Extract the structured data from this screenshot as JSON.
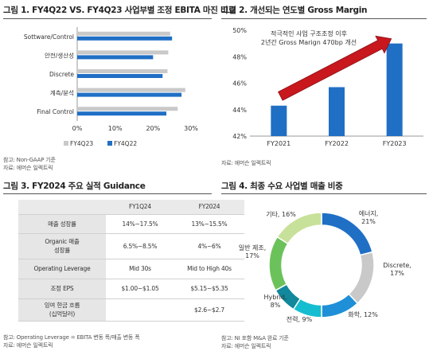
{
  "fig1": {
    "title": "그림 1. FY4Q22 VS. FY4Q23 사업부별 조정 EBITA 마진 비교",
    "notes": [
      "참고: Non-GAAP 기준",
      "자료: 에머슨 일렉트릭"
    ],
    "chart_data": {
      "type": "bar",
      "orientation": "horizontal",
      "categories": [
        "Sottware/Control",
        "안전/생산성",
        "Discrete",
        "계측/분석",
        "Final Control"
      ],
      "series": [
        {
          "name": "FY4Q23",
          "color": "#c9c9c9",
          "values": [
            24.5,
            24.0,
            23.8,
            28.5,
            26.5
          ]
        },
        {
          "name": "FY4Q22",
          "color": "#1f6fc5",
          "values": [
            25.0,
            20.0,
            22.5,
            27.5,
            23.5
          ]
        }
      ],
      "xlim": [
        0,
        30
      ],
      "xticks": [
        "0%",
        "10%",
        "20%",
        "30%"
      ],
      "legend": "bottom"
    }
  },
  "fig2": {
    "title": "그림 2. 개선되는 연도별 Gross Margin",
    "notes": [
      "자료: 에머슨 일렉트릭"
    ],
    "chart_data": {
      "type": "bar",
      "categories": [
        "FY2021",
        "FY2022",
        "FY2023"
      ],
      "values": [
        44.3,
        45.7,
        49.0
      ],
      "color": "#1f6fc5",
      "ylim": [
        42,
        50
      ],
      "yticks": [
        "42%",
        "44%",
        "46%",
        "48%",
        "50%"
      ],
      "annotation": [
        "적극적인 사업 구조조정 이후",
        "2년간 Gross Marign 470bp 개선"
      ],
      "arrow_color": "#c8171d"
    }
  },
  "fig3": {
    "title": "그림 3. FY2024 주요 실적 Guidance",
    "notes": [
      "참고: Operating Leverage = EBITA 변동 폭/매출 변동 폭",
      "자료: 에머슨 일렉트릭"
    ],
    "chart_data": {
      "type": "table",
      "columns": [
        "",
        "FY1Q24",
        "FY2024"
      ],
      "rows": [
        [
          "매출 성장률",
          "14%~17.5%",
          "13%~15.5%"
        ],
        [
          "Organic 매출\n성장률",
          "6.5%~8.5%",
          "4%~6%"
        ],
        [
          "Operating Leverage",
          "Mid 30s",
          "Mid to High 40s"
        ],
        [
          "조정 EPS",
          "$1.00~$1.05",
          "$5.15~$5.35"
        ],
        [
          "잉여 현금 흐름\n(십억달러)",
          "",
          "$2.6~$2.7"
        ]
      ]
    }
  },
  "fig4": {
    "title": "그림 4. 최종 수요 사업별 매출 비중",
    "notes": [
      "참고: NI 포함 M&A 완료 기준",
      "자료: 에머슨 일렉트릭"
    ],
    "chart_data": {
      "type": "pie",
      "style": "donut",
      "slices": [
        {
          "label": "에너지,\n21%",
          "value": 21,
          "color": "#1f6fc5"
        },
        {
          "label": "Discrete,\n17%",
          "value": 17,
          "color": "#c9c9c9"
        },
        {
          "label": "화학, 12%",
          "value": 12,
          "color": "#1f90d8"
        },
        {
          "label": "전력, 9%",
          "value": 9,
          "color": "#15bdd0"
        },
        {
          "label": "Hybrid,\n8%",
          "value": 8,
          "color": "#11889b"
        },
        {
          "label": "일반 제조,\n17%",
          "value": 17,
          "color": "#6cc25a"
        },
        {
          "label": "기타, 16%",
          "value": 16,
          "color": "#c8e19a"
        }
      ]
    }
  }
}
